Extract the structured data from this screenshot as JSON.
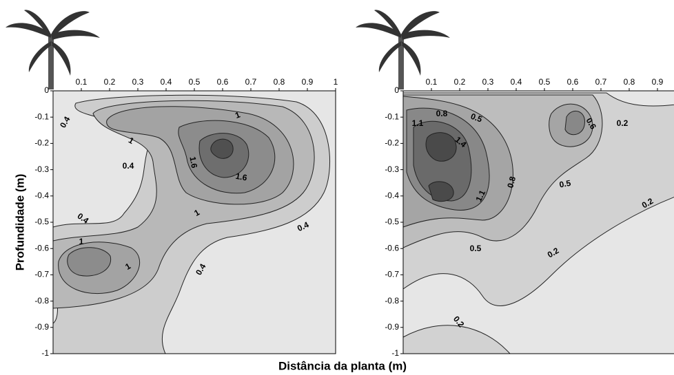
{
  "xlabel": "Distância da planta (m)",
  "chart_data": [
    {
      "type": "contour",
      "ylabel": "Profundidade (m)",
      "xlim": [
        0,
        1
      ],
      "xticks": [
        0.1,
        0.2,
        0.3,
        0.4,
        0.5,
        0.6,
        0.7,
        0.8,
        0.9,
        1
      ],
      "ylim": [
        -1,
        0
      ],
      "yticks": [
        0,
        -0.1,
        -0.2,
        -0.3,
        -0.4,
        -0.5,
        -0.6,
        -0.7,
        -0.8,
        -0.9,
        -1
      ],
      "contour_labels": [
        0.4,
        1,
        1,
        0.4,
        1.6,
        1.6,
        0.4,
        1,
        0.4,
        1,
        1,
        0.4
      ]
    },
    {
      "type": "contour",
      "xlim": [
        0,
        1
      ],
      "xticks": [
        0.1,
        0.2,
        0.3,
        0.4,
        0.5,
        0.6,
        0.7,
        0.8,
        0.9
      ],
      "ylim": [
        -1,
        0
      ],
      "yticks": [
        0,
        -0.1,
        -0.2,
        -0.3,
        -0.4,
        -0.5,
        -0.6,
        -0.7,
        -0.8,
        -0.9,
        -1
      ],
      "contour_labels": [
        0.8,
        1.1,
        0.5,
        1.4,
        0.6,
        0.2,
        0.8,
        1.1,
        0.5,
        0.2,
        0.5,
        0.2,
        0.2
      ]
    }
  ]
}
